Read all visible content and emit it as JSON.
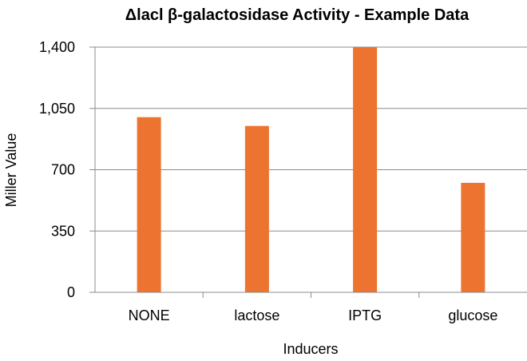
{
  "chart_data": {
    "type": "bar",
    "title": "Δlacl β-galactosidase Activity - Example Data",
    "xlabel": "Inducers",
    "ylabel": "Miller Value",
    "categories": [
      "NONE",
      "lactose",
      "IPTG",
      "glucose"
    ],
    "values": [
      1000,
      950,
      1400,
      625
    ],
    "ylim": [
      0,
      1400
    ],
    "yticks": [
      0,
      350,
      700,
      1050,
      1400
    ],
    "ytick_labels": [
      "0",
      "350",
      "700",
      "1,050",
      "1,400"
    ],
    "grid": true,
    "legend": "none",
    "bar_color": "#ED7330",
    "grid_color": "#8C8C8C"
  }
}
